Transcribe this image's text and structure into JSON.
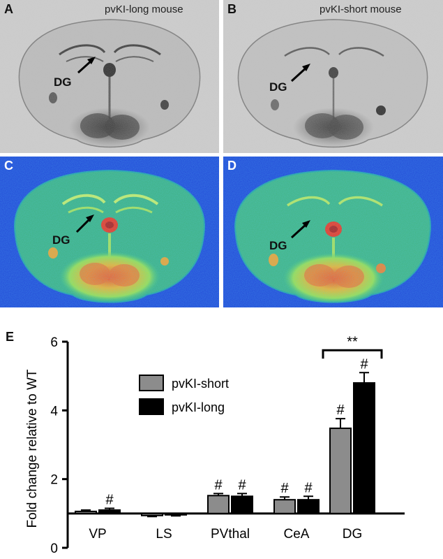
{
  "panels": {
    "a": {
      "label": "A",
      "title": "pvKI-long mouse",
      "region": "DG"
    },
    "b": {
      "label": "B",
      "title": "pvKI-short mouse",
      "region": "DG"
    },
    "c": {
      "label": "C",
      "region": "DG"
    },
    "d": {
      "label": "D",
      "region": "DG"
    }
  },
  "colors": {
    "short": "#8c8c8c",
    "long": "#000000",
    "autorad_bg": "#cfcfcf",
    "heat_bg": "#1f3fd6"
  },
  "chart_data": {
    "type": "bar",
    "panel_label": "E",
    "categories": [
      "VP",
      "LS",
      "PVthal",
      "CeA",
      "DG"
    ],
    "series": [
      {
        "name": "pvKI-short",
        "values": [
          1.06,
          0.94,
          1.52,
          1.4,
          3.48
        ],
        "errors": [
          0.04,
          0.03,
          0.06,
          0.08,
          0.28
        ]
      },
      {
        "name": "pvKI-long",
        "values": [
          1.1,
          0.96,
          1.5,
          1.4,
          4.8
        ],
        "errors": [
          0.05,
          0.03,
          0.08,
          0.1,
          0.3
        ]
      }
    ],
    "ylabel": "Fold change relative to WT",
    "xlabel": "",
    "ylim": [
      0,
      6
    ],
    "yticks": [
      0,
      2,
      4,
      6
    ],
    "baseline": 1,
    "significance": [
      {
        "category": "VP",
        "series": "pvKI-long",
        "mark": "#"
      },
      {
        "category": "PVthal",
        "series": "pvKI-short",
        "mark": "#"
      },
      {
        "category": "PVthal",
        "series": "pvKI-long",
        "mark": "#"
      },
      {
        "category": "CeA",
        "series": "pvKI-short",
        "mark": "#"
      },
      {
        "category": "CeA",
        "series": "pvKI-long",
        "mark": "#"
      },
      {
        "category": "DG",
        "series": "pvKI-short",
        "mark": "#"
      },
      {
        "category": "DG",
        "series": "pvKI-long",
        "mark": "#"
      }
    ],
    "bracket": {
      "category": "DG",
      "mark": "**"
    },
    "legend_position": "center-left",
    "grid": false
  }
}
